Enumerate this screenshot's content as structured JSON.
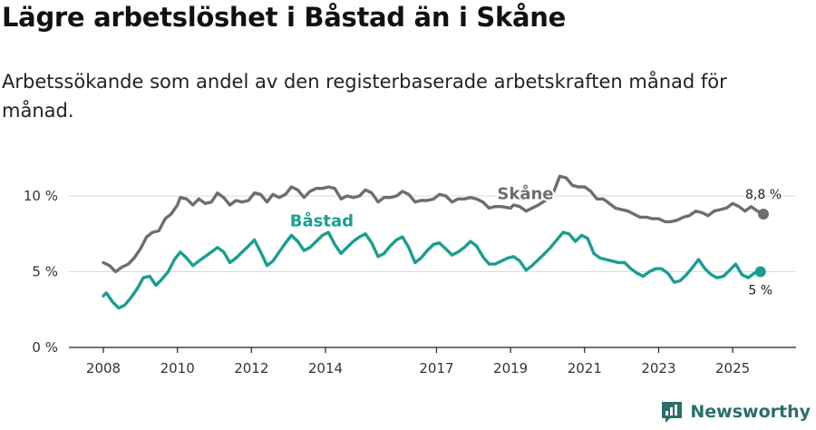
{
  "header": {
    "title": "Lägre arbetslöshet i Båstad än i Skåne",
    "subtitle": "Arbetssökande som andel av den registerbaserade arbetskraften månad för månad."
  },
  "brand": {
    "name": "Newsworthy",
    "icon": "newsworthy-logo-icon",
    "color": "#2a6f6a"
  },
  "chart_data": {
    "type": "line",
    "title": "Lägre arbetslöshet i Båstad än i Skåne",
    "subtitle": "Arbetssökande som andel av den registerbaserade arbetskraften månad för månad.",
    "xlabel": "",
    "ylabel": "",
    "x_ticks": [
      "2008",
      "2010",
      "2012",
      "2014",
      "2017",
      "2019",
      "2021",
      "2023",
      "2025"
    ],
    "x_tick_years": [
      2008,
      2010,
      2012,
      2014,
      2017,
      2019,
      2021,
      2023,
      2025
    ],
    "y_ticks": [
      "0 %",
      "5 %",
      "10 %"
    ],
    "y_tick_values": [
      0,
      5,
      10
    ],
    "ylim": [
      0,
      12
    ],
    "xlim": [
      2007.5,
      2026.7
    ],
    "grid": true,
    "series": [
      {
        "name": "Skåne",
        "color": "#6e6e6e",
        "end_label": "8,8 %",
        "points": [
          [
            2008.0,
            5.6
          ],
          [
            2008.17,
            5.4
          ],
          [
            2008.33,
            5.0
          ],
          [
            2008.5,
            5.3
          ],
          [
            2008.67,
            5.5
          ],
          [
            2008.83,
            5.9
          ],
          [
            2009.0,
            6.5
          ],
          [
            2009.17,
            7.3
          ],
          [
            2009.33,
            7.6
          ],
          [
            2009.5,
            7.7
          ],
          [
            2009.67,
            8.5
          ],
          [
            2009.83,
            8.8
          ],
          [
            2010.0,
            9.4
          ],
          [
            2010.08,
            9.9
          ],
          [
            2010.25,
            9.8
          ],
          [
            2010.42,
            9.4
          ],
          [
            2010.58,
            9.8
          ],
          [
            2010.75,
            9.5
          ],
          [
            2010.92,
            9.6
          ],
          [
            2011.08,
            10.2
          ],
          [
            2011.25,
            9.9
          ],
          [
            2011.42,
            9.4
          ],
          [
            2011.58,
            9.7
          ],
          [
            2011.75,
            9.6
          ],
          [
            2011.92,
            9.7
          ],
          [
            2012.08,
            10.2
          ],
          [
            2012.25,
            10.1
          ],
          [
            2012.42,
            9.6
          ],
          [
            2012.58,
            10.1
          ],
          [
            2012.75,
            9.9
          ],
          [
            2012.92,
            10.1
          ],
          [
            2013.08,
            10.6
          ],
          [
            2013.25,
            10.4
          ],
          [
            2013.42,
            9.9
          ],
          [
            2013.58,
            10.3
          ],
          [
            2013.75,
            10.5
          ],
          [
            2013.92,
            10.5
          ],
          [
            2014.08,
            10.6
          ],
          [
            2014.25,
            10.5
          ],
          [
            2014.42,
            9.8
          ],
          [
            2014.58,
            10.0
          ],
          [
            2014.75,
            9.9
          ],
          [
            2014.92,
            10.0
          ],
          [
            2015.08,
            10.4
          ],
          [
            2015.25,
            10.2
          ],
          [
            2015.42,
            9.6
          ],
          [
            2015.58,
            9.9
          ],
          [
            2015.75,
            9.9
          ],
          [
            2015.92,
            10.0
          ],
          [
            2016.08,
            10.3
          ],
          [
            2016.25,
            10.1
          ],
          [
            2016.42,
            9.6
          ],
          [
            2016.58,
            9.7
          ],
          [
            2016.75,
            9.7
          ],
          [
            2016.92,
            9.8
          ],
          [
            2017.08,
            10.1
          ],
          [
            2017.25,
            10.0
          ],
          [
            2017.42,
            9.6
          ],
          [
            2017.58,
            9.8
          ],
          [
            2017.75,
            9.8
          ],
          [
            2017.92,
            9.9
          ],
          [
            2018.08,
            9.8
          ],
          [
            2018.25,
            9.6
          ],
          [
            2018.42,
            9.2
          ],
          [
            2018.58,
            9.3
          ],
          [
            2018.75,
            9.3
          ],
          [
            2019.0,
            9.2
          ],
          [
            2019.08,
            9.4
          ],
          [
            2019.25,
            9.3
          ],
          [
            2019.42,
            9.0
          ],
          [
            2019.58,
            9.2
          ],
          [
            2019.75,
            9.4
          ],
          [
            2020.0,
            9.8
          ],
          [
            2020.17,
            10.3
          ],
          [
            2020.33,
            11.3
          ],
          [
            2020.5,
            11.2
          ],
          [
            2020.67,
            10.7
          ],
          [
            2020.83,
            10.6
          ],
          [
            2021.0,
            10.6
          ],
          [
            2021.17,
            10.3
          ],
          [
            2021.33,
            9.8
          ],
          [
            2021.5,
            9.8
          ],
          [
            2021.67,
            9.5
          ],
          [
            2021.83,
            9.2
          ],
          [
            2022.0,
            9.1
          ],
          [
            2022.17,
            9.0
          ],
          [
            2022.33,
            8.8
          ],
          [
            2022.5,
            8.6
          ],
          [
            2022.67,
            8.6
          ],
          [
            2022.83,
            8.5
          ],
          [
            2023.0,
            8.5
          ],
          [
            2023.17,
            8.3
          ],
          [
            2023.33,
            8.3
          ],
          [
            2023.5,
            8.4
          ],
          [
            2023.67,
            8.6
          ],
          [
            2023.83,
            8.7
          ],
          [
            2024.0,
            9.0
          ],
          [
            2024.17,
            8.9
          ],
          [
            2024.33,
            8.7
          ],
          [
            2024.5,
            9.0
          ],
          [
            2024.67,
            9.1
          ],
          [
            2024.83,
            9.2
          ],
          [
            2025.0,
            9.5
          ],
          [
            2025.17,
            9.3
          ],
          [
            2025.33,
            9.0
          ],
          [
            2025.5,
            9.3
          ],
          [
            2025.67,
            9.0
          ],
          [
            2025.83,
            8.8
          ]
        ]
      },
      {
        "name": "Båstad",
        "color": "#1a9e90",
        "end_label": "5 %",
        "points": [
          [
            2008.0,
            3.4
          ],
          [
            2008.08,
            3.6
          ],
          [
            2008.25,
            3.0
          ],
          [
            2008.42,
            2.6
          ],
          [
            2008.58,
            2.8
          ],
          [
            2008.75,
            3.3
          ],
          [
            2008.92,
            3.9
          ],
          [
            2009.08,
            4.6
          ],
          [
            2009.25,
            4.7
          ],
          [
            2009.42,
            4.1
          ],
          [
            2009.58,
            4.5
          ],
          [
            2009.75,
            5.0
          ],
          [
            2009.92,
            5.8
          ],
          [
            2010.08,
            6.3
          ],
          [
            2010.25,
            5.9
          ],
          [
            2010.42,
            5.4
          ],
          [
            2010.58,
            5.7
          ],
          [
            2010.75,
            6.0
          ],
          [
            2010.92,
            6.3
          ],
          [
            2011.08,
            6.6
          ],
          [
            2011.25,
            6.3
          ],
          [
            2011.42,
            5.6
          ],
          [
            2011.58,
            5.9
          ],
          [
            2011.75,
            6.3
          ],
          [
            2011.92,
            6.7
          ],
          [
            2012.08,
            7.1
          ],
          [
            2012.25,
            6.3
          ],
          [
            2012.42,
            5.4
          ],
          [
            2012.58,
            5.7
          ],
          [
            2012.75,
            6.3
          ],
          [
            2012.92,
            6.9
          ],
          [
            2013.08,
            7.4
          ],
          [
            2013.25,
            7.0
          ],
          [
            2013.42,
            6.4
          ],
          [
            2013.58,
            6.6
          ],
          [
            2013.75,
            7.0
          ],
          [
            2013.92,
            7.4
          ],
          [
            2014.08,
            7.6
          ],
          [
            2014.25,
            6.8
          ],
          [
            2014.42,
            6.2
          ],
          [
            2014.58,
            6.6
          ],
          [
            2014.75,
            7.0
          ],
          [
            2014.92,
            7.3
          ],
          [
            2015.08,
            7.5
          ],
          [
            2015.25,
            6.9
          ],
          [
            2015.42,
            6.0
          ],
          [
            2015.58,
            6.2
          ],
          [
            2015.75,
            6.7
          ],
          [
            2015.92,
            7.1
          ],
          [
            2016.08,
            7.3
          ],
          [
            2016.25,
            6.6
          ],
          [
            2016.42,
            5.6
          ],
          [
            2016.58,
            5.9
          ],
          [
            2016.75,
            6.4
          ],
          [
            2016.92,
            6.8
          ],
          [
            2017.08,
            6.9
          ],
          [
            2017.25,
            6.5
          ],
          [
            2017.42,
            6.1
          ],
          [
            2017.58,
            6.3
          ],
          [
            2017.75,
            6.6
          ],
          [
            2017.92,
            7.0
          ],
          [
            2018.08,
            6.7
          ],
          [
            2018.25,
            6.0
          ],
          [
            2018.42,
            5.5
          ],
          [
            2018.58,
            5.5
          ],
          [
            2018.75,
            5.7
          ],
          [
            2018.92,
            5.9
          ],
          [
            2019.08,
            6.0
          ],
          [
            2019.25,
            5.7
          ],
          [
            2019.42,
            5.1
          ],
          [
            2019.58,
            5.4
          ],
          [
            2019.75,
            5.8
          ],
          [
            2019.92,
            6.2
          ],
          [
            2020.08,
            6.6
          ],
          [
            2020.25,
            7.1
          ],
          [
            2020.42,
            7.6
          ],
          [
            2020.58,
            7.5
          ],
          [
            2020.75,
            7.0
          ],
          [
            2020.92,
            7.4
          ],
          [
            2021.08,
            7.2
          ],
          [
            2021.25,
            6.2
          ],
          [
            2021.42,
            5.9
          ],
          [
            2021.58,
            5.8
          ],
          [
            2021.75,
            5.7
          ],
          [
            2021.92,
            5.6
          ],
          [
            2022.08,
            5.6
          ],
          [
            2022.25,
            5.2
          ],
          [
            2022.42,
            4.9
          ],
          [
            2022.58,
            4.7
          ],
          [
            2022.75,
            5.0
          ],
          [
            2022.92,
            5.2
          ],
          [
            2023.08,
            5.2
          ],
          [
            2023.25,
            4.9
          ],
          [
            2023.42,
            4.3
          ],
          [
            2023.58,
            4.4
          ],
          [
            2023.75,
            4.8
          ],
          [
            2023.92,
            5.3
          ],
          [
            2024.08,
            5.8
          ],
          [
            2024.25,
            5.2
          ],
          [
            2024.42,
            4.8
          ],
          [
            2024.58,
            4.6
          ],
          [
            2024.75,
            4.7
          ],
          [
            2024.92,
            5.1
          ],
          [
            2025.08,
            5.5
          ],
          [
            2025.25,
            4.8
          ],
          [
            2025.42,
            4.6
          ],
          [
            2025.58,
            4.9
          ],
          [
            2025.75,
            5.0
          ]
        ]
      }
    ]
  }
}
